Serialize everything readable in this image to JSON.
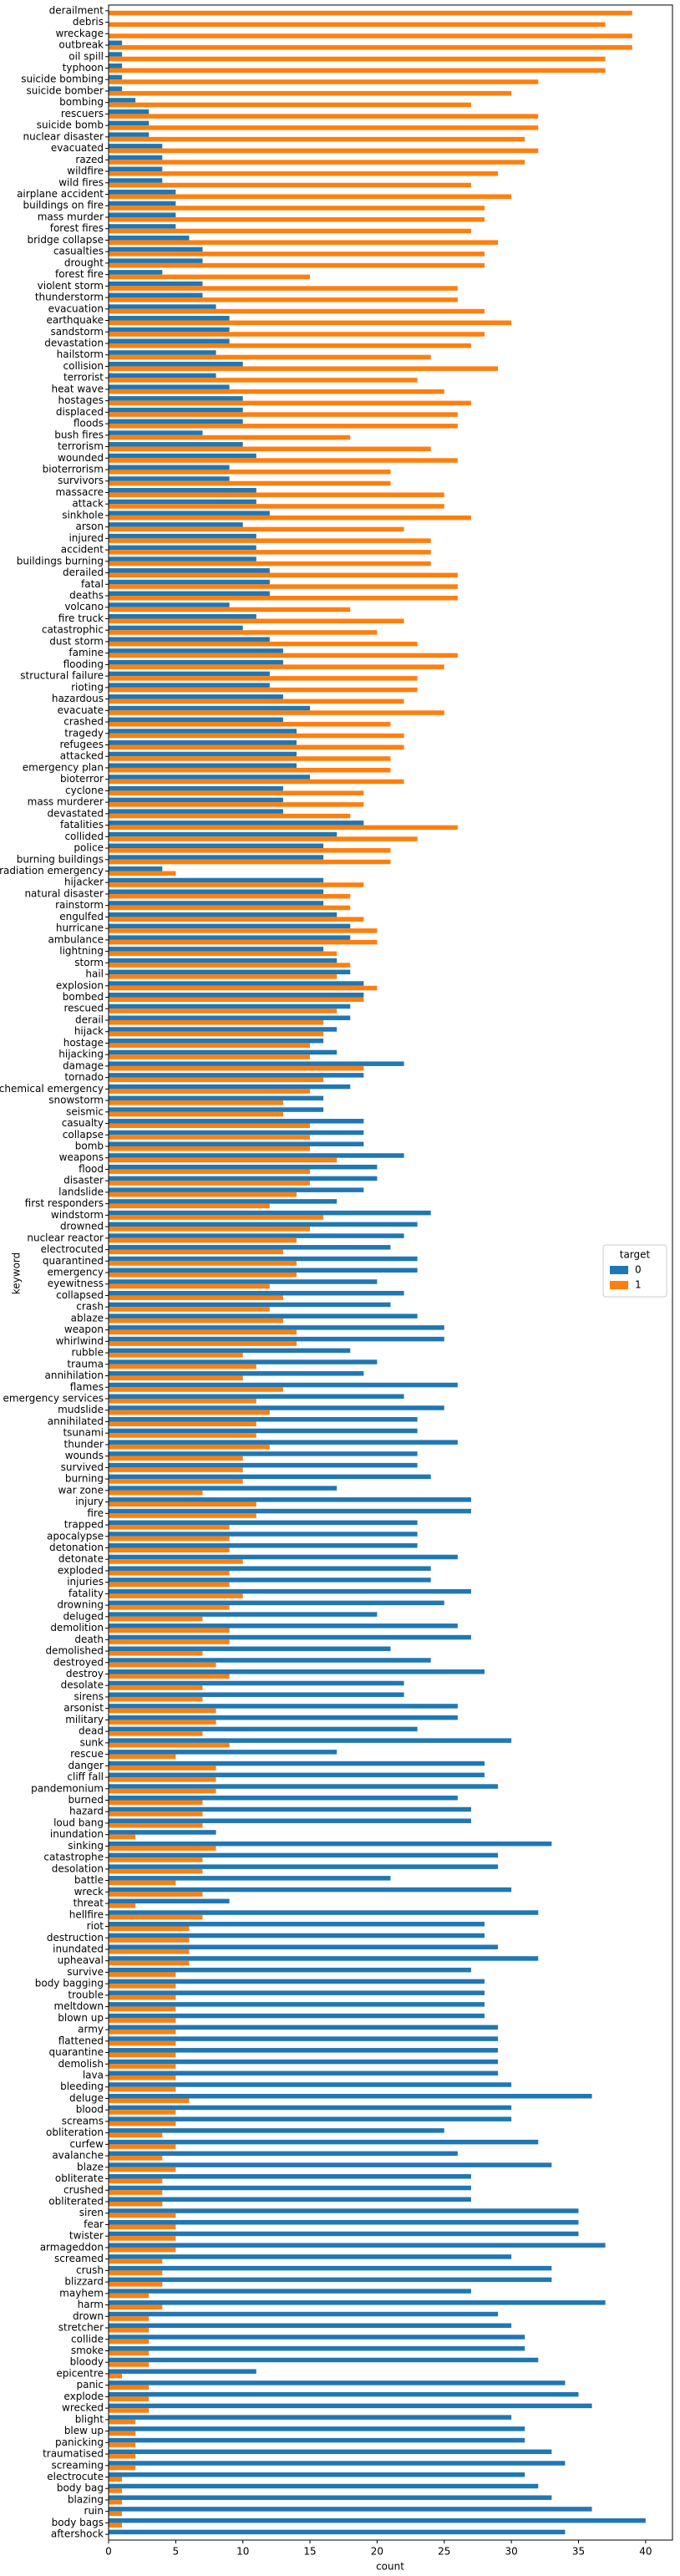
{
  "chart_data": {
    "type": "barh",
    "xlabel": "count",
    "ylabel": "keyword",
    "legend_title": "target",
    "legend": "right",
    "xlim": [
      0,
      42
    ],
    "xticks": [
      0,
      5,
      10,
      15,
      20,
      25,
      30,
      35,
      40
    ],
    "categories": [
      "derailment",
      "debris",
      "wreckage",
      "outbreak",
      "oil spill",
      "typhoon",
      "suicide bombing",
      "suicide bomber",
      "bombing",
      "rescuers",
      "suicide bomb",
      "nuclear disaster",
      "evacuated",
      "razed",
      "wildfire",
      "wild fires",
      "airplane accident",
      "buildings on fire",
      "mass murder",
      "forest fires",
      "bridge collapse",
      "casualties",
      "drought",
      "forest fire",
      "violent storm",
      "thunderstorm",
      "evacuation",
      "earthquake",
      "sandstorm",
      "devastation",
      "hailstorm",
      "collision",
      "terrorist",
      "heat wave",
      "hostages",
      "displaced",
      "floods",
      "bush fires",
      "terrorism",
      "wounded",
      "bioterrorism",
      "survivors",
      "massacre",
      "attack",
      "sinkhole",
      "arson",
      "injured",
      "accident",
      "buildings burning",
      "derailed",
      "fatal",
      "deaths",
      "volcano",
      "fire truck",
      "catastrophic",
      "dust storm",
      "famine",
      "flooding",
      "structural failure",
      "rioting",
      "hazardous",
      "evacuate",
      "crashed",
      "tragedy",
      "refugees",
      "attacked",
      "emergency plan",
      "bioterror",
      "cyclone",
      "mass murderer",
      "devastated",
      "fatalities",
      "collided",
      "police",
      "burning buildings",
      "radiation emergency",
      "hijacker",
      "natural disaster",
      "rainstorm",
      "engulfed",
      "hurricane",
      "ambulance",
      "lightning",
      "storm",
      "hail",
      "explosion",
      "bombed",
      "rescued",
      "derail",
      "hijack",
      "hostage",
      "hijacking",
      "damage",
      "tornado",
      "chemical emergency",
      "snowstorm",
      "seismic",
      "casualty",
      "collapse",
      "bomb",
      "weapons",
      "flood",
      "disaster",
      "landslide",
      "first responders",
      "windstorm",
      "drowned",
      "nuclear reactor",
      "electrocuted",
      "quarantined",
      "emergency",
      "eyewitness",
      "collapsed",
      "crash",
      "ablaze",
      "weapon",
      "whirlwind",
      "rubble",
      "trauma",
      "annihilation",
      "flames",
      "emergency services",
      "mudslide",
      "annihilated",
      "tsunami",
      "thunder",
      "wounds",
      "survived",
      "burning",
      "war zone",
      "injury",
      "fire",
      "trapped",
      "apocalypse",
      "detonation",
      "detonate",
      "exploded",
      "injuries",
      "fatality",
      "drowning",
      "deluged",
      "demolition",
      "death",
      "demolished",
      "destroyed",
      "destroy",
      "desolate",
      "sirens",
      "arsonist",
      "military",
      "dead",
      "sunk",
      "rescue",
      "danger",
      "cliff fall",
      "pandemonium",
      "burned",
      "hazard",
      "loud bang",
      "inundation",
      "sinking",
      "catastrophe",
      "desolation",
      "battle",
      "wreck",
      "threat",
      "hellfire",
      "riot",
      "destruction",
      "inundated",
      "upheaval",
      "survive",
      "body bagging",
      "trouble",
      "meltdown",
      "blown up",
      "army",
      "flattened",
      "quarantine",
      "demolish",
      "lava",
      "bleeding",
      "deluge",
      "blood",
      "screams",
      "obliteration",
      "curfew",
      "avalanche",
      "blaze",
      "obliterate",
      "crushed",
      "obliterated",
      "siren",
      "fear",
      "twister",
      "armageddon",
      "screamed",
      "crush",
      "blizzard",
      "mayhem",
      "harm",
      "drown",
      "stretcher",
      "collide",
      "smoke",
      "bloody",
      "epicentre",
      "panic",
      "explode",
      "wrecked",
      "blight",
      "blew up",
      "panicking",
      "traumatised",
      "screaming",
      "electrocute",
      "body bag",
      "blazing",
      "ruin",
      "body bags",
      "aftershock"
    ],
    "series": [
      {
        "name": "0",
        "color": "#1f77b4",
        "values": [
          0,
          0,
          0,
          1,
          1,
          1,
          1,
          1,
          2,
          3,
          3,
          3,
          4,
          4,
          4,
          4,
          5,
          5,
          5,
          5,
          6,
          7,
          7,
          4,
          7,
          7,
          8,
          9,
          9,
          9,
          8,
          10,
          8,
          9,
          10,
          10,
          10,
          7,
          10,
          11,
          9,
          9,
          11,
          11,
          12,
          10,
          11,
          11,
          11,
          12,
          12,
          12,
          9,
          11,
          10,
          12,
          13,
          13,
          12,
          12,
          13,
          15,
          13,
          14,
          14,
          14,
          14,
          15,
          13,
          13,
          13,
          19,
          17,
          16,
          16,
          4,
          16,
          16,
          16,
          17,
          18,
          18,
          16,
          17,
          18,
          19,
          19,
          18,
          18,
          17,
          16,
          17,
          22,
          19,
          18,
          16,
          16,
          19,
          19,
          19,
          22,
          20,
          20,
          19,
          17,
          24,
          23,
          22,
          21,
          23,
          23,
          20,
          22,
          21,
          23,
          25,
          25,
          18,
          20,
          19,
          26,
          22,
          25,
          23,
          23,
          26,
          23,
          23,
          24,
          17,
          27,
          27,
          23,
          23,
          23,
          26,
          24,
          24,
          27,
          25,
          20,
          26,
          27,
          21,
          24,
          28,
          22,
          22,
          26,
          26,
          23,
          30,
          17,
          28,
          28,
          29,
          26,
          27,
          27,
          8,
          33,
          29,
          29,
          21,
          30,
          9,
          32,
          28,
          28,
          29,
          32,
          27,
          28,
          28,
          28,
          28,
          29,
          29,
          29,
          29,
          29,
          30,
          36,
          30,
          30,
          25,
          32,
          26,
          33,
          27,
          27,
          27,
          35,
          35,
          35,
          37,
          30,
          33,
          33,
          27,
          37,
          29,
          30,
          31,
          31,
          32,
          11,
          34,
          35,
          36,
          30,
          31,
          31,
          33,
          34,
          31,
          32,
          33,
          36,
          40,
          34
        ]
      },
      {
        "name": "1",
        "color": "#ff7f0e",
        "values": [
          39,
          37,
          39,
          39,
          37,
          37,
          32,
          30,
          27,
          32,
          32,
          31,
          32,
          31,
          29,
          27,
          30,
          28,
          28,
          27,
          29,
          28,
          28,
          15,
          26,
          26,
          28,
          30,
          28,
          27,
          24,
          29,
          23,
          25,
          27,
          26,
          26,
          18,
          24,
          26,
          21,
          21,
          25,
          25,
          27,
          22,
          24,
          24,
          24,
          26,
          26,
          26,
          18,
          22,
          20,
          23,
          26,
          25,
          23,
          23,
          22,
          25,
          21,
          22,
          22,
          21,
          21,
          22,
          19,
          19,
          18,
          26,
          23,
          21,
          21,
          5,
          19,
          18,
          18,
          19,
          20,
          20,
          17,
          18,
          17,
          20,
          19,
          17,
          16,
          16,
          15,
          15,
          19,
          16,
          15,
          13,
          13,
          15,
          15,
          15,
          17,
          15,
          15,
          14,
          12,
          16,
          15,
          14,
          13,
          14,
          14,
          12,
          13,
          12,
          13,
          14,
          14,
          10,
          11,
          10,
          13,
          11,
          12,
          11,
          11,
          12,
          10,
          10,
          10,
          7,
          11,
          11,
          9,
          9,
          9,
          10,
          9,
          9,
          10,
          9,
          7,
          9,
          9,
          7,
          8,
          9,
          7,
          7,
          8,
          8,
          7,
          9,
          5,
          8,
          8,
          8,
          7,
          7,
          7,
          2,
          8,
          7,
          7,
          5,
          7,
          2,
          7,
          6,
          6,
          6,
          6,
          5,
          5,
          5,
          5,
          5,
          5,
          5,
          5,
          5,
          5,
          5,
          6,
          5,
          5,
          4,
          5,
          4,
          5,
          4,
          4,
          4,
          5,
          5,
          5,
          5,
          4,
          4,
          4,
          3,
          4,
          3,
          3,
          3,
          3,
          3,
          1,
          3,
          3,
          3,
          2,
          2,
          2,
          2,
          2,
          1,
          1,
          1,
          1,
          1,
          0
        ]
      }
    ]
  }
}
